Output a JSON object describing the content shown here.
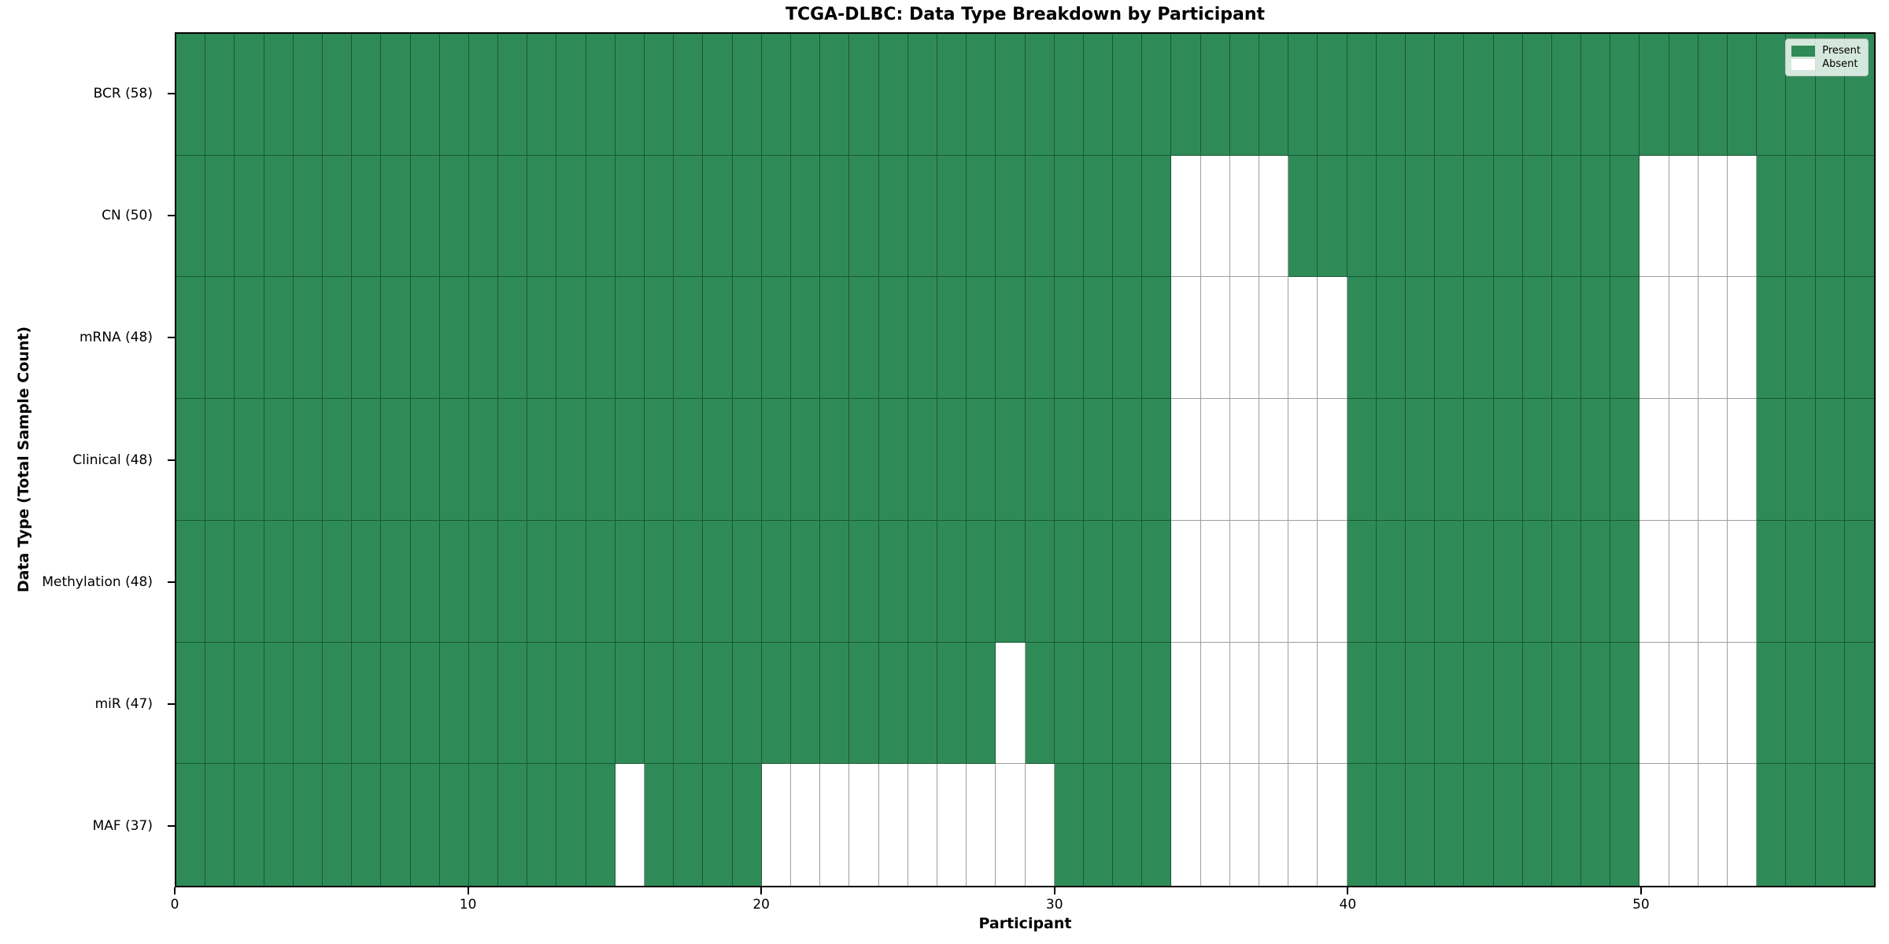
{
  "chart_data": {
    "type": "heatmap",
    "title": "TCGA-DLBC: Data Type Breakdown by Participant",
    "xlabel": "Participant",
    "ylabel": "Data Type (Total Sample Count)",
    "n_participants": 58,
    "x_ticks": [
      0,
      10,
      20,
      30,
      40,
      50
    ],
    "x_range": [
      0,
      58
    ],
    "grid": true,
    "legend_position": "upper right",
    "colors": {
      "present": "#2e8b57",
      "absent": "#ffffff",
      "gridline": "rgba(0,0,0,0.38)",
      "spine": "#000000",
      "legend_background": "rgba(255,255,255,0.8)"
    },
    "legend": [
      {
        "label": "Present",
        "color": "#2e8b57"
      },
      {
        "label": "Absent",
        "color": "#ffffff"
      }
    ],
    "rows": [
      {
        "label": "BCR (58)",
        "data_type": "BCR",
        "total_samples": 58,
        "absent_participants": []
      },
      {
        "label": "CN (50)",
        "data_type": "CN",
        "total_samples": 50,
        "absent_participants": [
          34,
          35,
          36,
          37,
          50,
          51,
          52,
          53
        ]
      },
      {
        "label": "mRNA (48)",
        "data_type": "mRNA",
        "total_samples": 48,
        "absent_participants": [
          34,
          35,
          36,
          37,
          38,
          39,
          50,
          51,
          52,
          53
        ]
      },
      {
        "label": "Clinical (48)",
        "data_type": "Clinical",
        "total_samples": 48,
        "absent_participants": [
          34,
          35,
          36,
          37,
          38,
          39,
          50,
          51,
          52,
          53
        ]
      },
      {
        "label": "Methylation (48)",
        "data_type": "Methylation",
        "total_samples": 48,
        "absent_participants": [
          34,
          35,
          36,
          37,
          38,
          39,
          50,
          51,
          52,
          53
        ]
      },
      {
        "label": "miR (47)",
        "data_type": "miR",
        "total_samples": 47,
        "absent_participants": [
          28,
          34,
          35,
          36,
          37,
          38,
          39,
          50,
          51,
          52,
          53
        ]
      },
      {
        "label": "MAF (37)",
        "data_type": "MAF",
        "total_samples": 37,
        "absent_participants": [
          15,
          20,
          21,
          22,
          23,
          24,
          25,
          26,
          27,
          28,
          29,
          34,
          35,
          36,
          37,
          38,
          39,
          50,
          51,
          52,
          53
        ]
      }
    ]
  }
}
